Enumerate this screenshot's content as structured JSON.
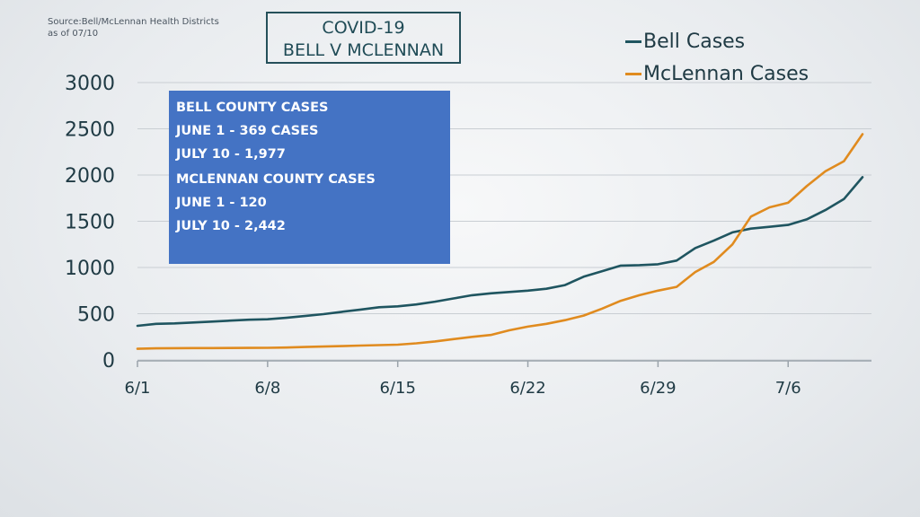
{
  "source": [
    "Source:Bell/McLennan Health Districts",
    "as of 07/10"
  ],
  "title_lines": [
    "COVID-19",
    "BELL V MCLENNAN"
  ],
  "info_box": {
    "bell": [
      "BELL COUNTY CASES",
      "JUNE 1 - 369 CASES",
      "JULY 10 - 1,977"
    ],
    "mclennan": [
      "MCLENNAN COUNTY CASES",
      "JUNE 1 - 120",
      "JULY 10 - 2,442"
    ],
    "color": "#4473c4"
  },
  "chart_data": {
    "type": "line",
    "title": "COVID-19 BELL V MCLENNAN",
    "xlabel": "",
    "ylabel": "",
    "x": [
      "6/1",
      "6/2",
      "6/3",
      "6/4",
      "6/5",
      "6/6",
      "6/7",
      "6/8",
      "6/9",
      "6/10",
      "6/11",
      "6/12",
      "6/13",
      "6/14",
      "6/15",
      "6/16",
      "6/17",
      "6/18",
      "6/19",
      "6/20",
      "6/21",
      "6/22",
      "6/23",
      "6/24",
      "6/25",
      "6/26",
      "6/27",
      "6/28",
      "6/29",
      "6/30",
      "7/1",
      "7/2",
      "7/3",
      "7/4",
      "7/5",
      "7/6",
      "7/7",
      "7/8",
      "7/9",
      "7/10"
    ],
    "x_tick_labels": [
      "6/1",
      "6/8",
      "6/15",
      "6/22",
      "6/29",
      "7/6"
    ],
    "y_ticks": [
      0,
      500,
      1000,
      1500,
      2000,
      2500,
      3000
    ],
    "ylim": [
      0,
      3000
    ],
    "grid": true,
    "legend_position": "top-right",
    "series": [
      {
        "name": "Bell Cases",
        "color": "#1f5560",
        "values": [
          369,
          390,
          395,
          405,
          415,
          425,
          435,
          440,
          455,
          475,
          495,
          520,
          545,
          570,
          580,
          600,
          630,
          665,
          700,
          720,
          735,
          750,
          770,
          810,
          900,
          960,
          1020,
          1025,
          1035,
          1075,
          1210,
          1290,
          1380,
          1420,
          1440,
          1460,
          1520,
          1620,
          1740,
          1977
        ]
      },
      {
        "name": "McLennan Cases",
        "color": "#e08b1f",
        "values": [
          120,
          125,
          127,
          128,
          128,
          129,
          130,
          131,
          134,
          140,
          145,
          150,
          155,
          160,
          165,
          180,
          200,
          225,
          250,
          270,
          320,
          360,
          390,
          430,
          480,
          555,
          640,
          700,
          750,
          790,
          950,
          1060,
          1250,
          1550,
          1650,
          1700,
          1880,
          2040,
          2150,
          2442
        ]
      }
    ]
  }
}
